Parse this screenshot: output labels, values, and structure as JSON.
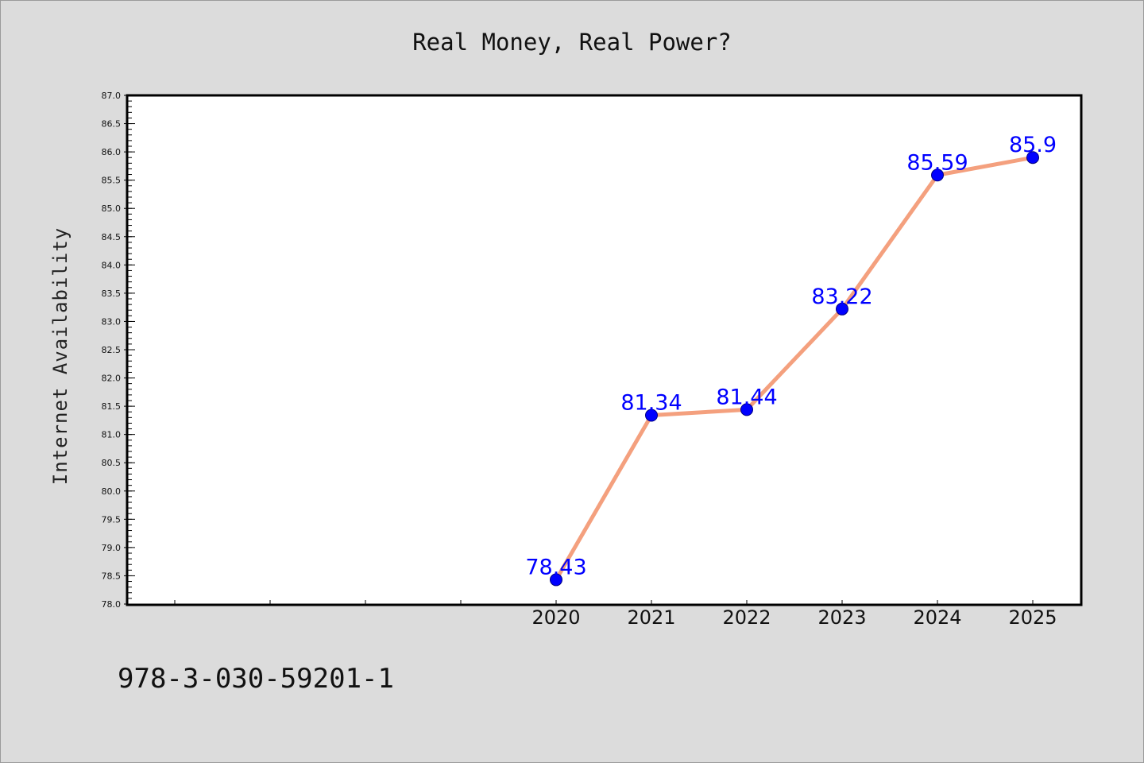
{
  "chart_data": {
    "type": "line",
    "title": "Real Money, Real Power?",
    "xlabel": "",
    "ylabel": "Internet Availability",
    "x": [
      "2020",
      "2021",
      "2022",
      "2023",
      "2024",
      "2025"
    ],
    "series": [
      {
        "values": [
          78.43,
          81.34,
          81.44,
          83.22,
          85.59,
          85.9
        ],
        "labels": [
          "78.43",
          "81.34",
          "81.44",
          "83.22",
          "85.59",
          "85.9"
        ]
      }
    ],
    "ylim": [
      78.0,
      87.0
    ],
    "yticks": [
      "78.0",
      "78.5",
      "79.0",
      "79.5",
      "80.0",
      "80.5",
      "81.0",
      "81.5",
      "82.0",
      "82.5",
      "83.0",
      "83.5",
      "84.0",
      "84.5",
      "85.0",
      "85.5",
      "86.0",
      "86.5",
      "87.0"
    ],
    "grid": false,
    "legend": "none",
    "colors": {
      "line": "#f4a07e",
      "marker": "#0000ff",
      "labels": "#0000ff",
      "background": "#dcdcdc",
      "plot_background": "#ffffff"
    }
  },
  "footer": {
    "isbn": "978-3-030-59201-1"
  }
}
